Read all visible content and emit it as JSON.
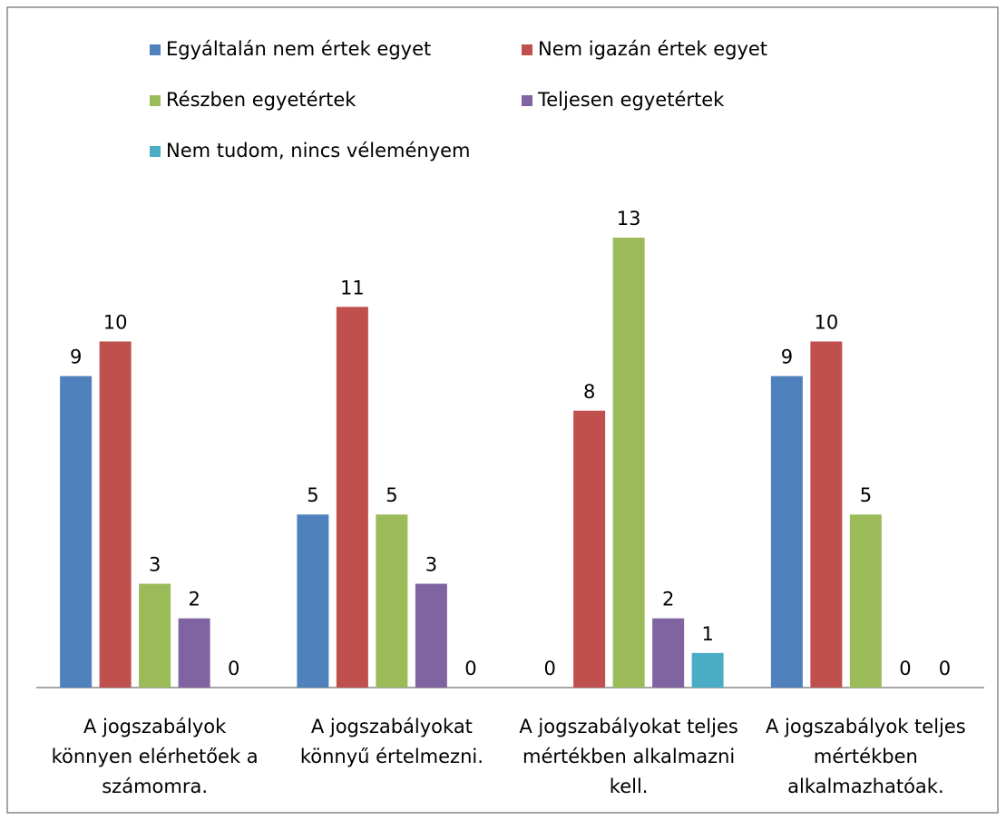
{
  "chart_data": {
    "type": "bar",
    "categories": [
      "A jogszabályok könnyen elérhetőek a számomra.",
      "A jogszabályokat könnyű értelmezni.",
      "A jogszabályokat teljes mértékben alkalmazni kell.",
      "A jogszabályok teljes mértékben alkalmazhatóak."
    ],
    "series": [
      {
        "name": "Egyáltalán nem értek egyet",
        "color": "#4f81bd",
        "values": [
          9,
          5,
          0,
          9
        ]
      },
      {
        "name": "Nem igazán értek egyet",
        "color": "#c0504d",
        "values": [
          10,
          11,
          8,
          10
        ]
      },
      {
        "name": "Részben egyetértek",
        "color": "#9bbb59",
        "values": [
          3,
          5,
          13,
          5
        ]
      },
      {
        "name": "Teljesen egyetértek",
        "color": "#8064a2",
        "values": [
          2,
          3,
          2,
          0
        ]
      },
      {
        "name": "Nem tudom, nincs véleményem",
        "color": "#4bacc6",
        "values": [
          0,
          0,
          1,
          0
        ]
      }
    ],
    "legend": "top"
  }
}
